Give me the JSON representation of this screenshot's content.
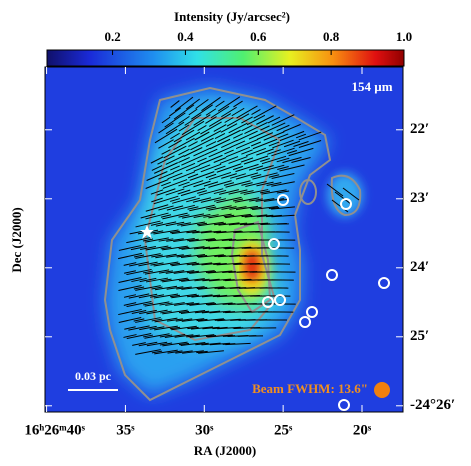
{
  "chart_data": {
    "type": "image",
    "title": "Intensity (Jy/arcsec²)",
    "clim": [
      0.02,
      1.0
    ],
    "cticks": [
      0.2,
      0.4,
      0.6,
      0.8,
      {
        "value": 1.0,
        "label": "1.0"
      }
    ],
    "xlabel": "RA (J2000)",
    "ylabel": "Dec (J2000)",
    "xlim": [
      40.1,
      17.4
    ],
    "xticks": [
      {
        "value": 40,
        "label": "16ʰ26ᵐ40ˢ"
      },
      {
        "value": 35,
        "label": "35ˢ"
      },
      {
        "value": 30,
        "label": "30ˢ"
      },
      {
        "value": 25,
        "label": "25ˢ"
      },
      {
        "value": 20,
        "label": "20ˢ"
      }
    ],
    "ylim": [
      26.09,
      21.09
    ],
    "yticks": [
      {
        "value": 22,
        "label": "22′"
      },
      {
        "value": 23,
        "label": "23′"
      },
      {
        "value": 24,
        "label": "24′"
      },
      {
        "value": 25,
        "label": "25′"
      },
      {
        "value": 26,
        "label": "-24°26′"
      }
    ],
    "annotations": {
      "band": "154 µm",
      "scale": "0.03 pc",
      "beam": "Beam FWHM: 13.6\""
    }
  }
}
